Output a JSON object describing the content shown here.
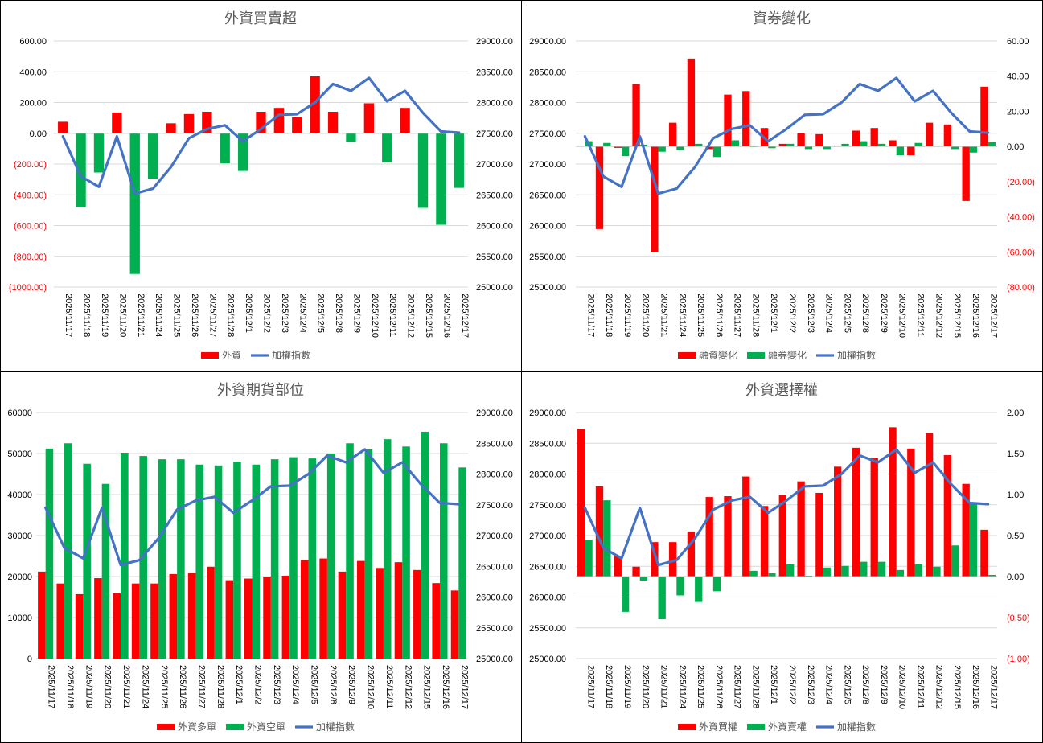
{
  "dates": [
    "2025/11/17",
    "2025/11/18",
    "2025/11/19",
    "2025/11/20",
    "2025/11/21",
    "2025/11/24",
    "2025/11/25",
    "2025/11/26",
    "2025/11/27",
    "2025/11/28",
    "2025/12/1",
    "2025/12/2",
    "2025/12/3",
    "2025/12/4",
    "2025/12/5",
    "2025/12/8",
    "2025/12/9",
    "2025/12/10",
    "2025/12/11",
    "2025/12/12",
    "2025/12/15",
    "2025/12/16",
    "2025/12/17"
  ],
  "colors": {
    "red": "#ff0000",
    "green": "#00b050",
    "line": "#4472c4",
    "grid": "#d9d9d9",
    "negative": "#ff0000",
    "text": "#595959"
  },
  "chart_data": [
    {
      "id": "foreign-net",
      "type": "bar+line",
      "title": "外資買賣超",
      "bar_mode": "signed_color",
      "left_axis": {
        "min": -1000,
        "max": 600,
        "step": 200,
        "format": "2dp-paren"
      },
      "right_axis": {
        "min": 25000,
        "max": 29000,
        "step": 500,
        "format": "2dp"
      },
      "series": [
        {
          "name": "外資",
          "kind": "bar",
          "axis": "left",
          "values": [
            75,
            -480,
            -255,
            135,
            -915,
            -295,
            65,
            125,
            140,
            -195,
            -245,
            140,
            165,
            105,
            370,
            140,
            -55,
            195,
            -190,
            165,
            -485,
            -595,
            -355
          ]
        },
        {
          "name": "加權指數",
          "kind": "line",
          "axis": "right",
          "values": [
            27450,
            26800,
            26630,
            27450,
            26520,
            26600,
            26950,
            27420,
            27570,
            27630,
            27370,
            27570,
            27800,
            27810,
            28000,
            28300,
            28190,
            28400,
            28020,
            28190,
            27830,
            27530,
            27510
          ]
        }
      ],
      "legend": [
        "外資",
        "加權指數"
      ]
    },
    {
      "id": "margin-change",
      "type": "bar+line",
      "title": "資券變化",
      "bar_mode": "fixed",
      "left_axis": {
        "min": 25000,
        "max": 29000,
        "step": 500,
        "format": "2dp"
      },
      "right_axis": {
        "min": -80,
        "max": 60,
        "step": 20,
        "format": "2dp-paren"
      },
      "series": [
        {
          "name": "融資變化",
          "kind": "bar",
          "axis": "right",
          "color": "red",
          "values": [
            0.3,
            -47,
            -0.8,
            35.5,
            -60,
            13.5,
            50,
            -1.5,
            29.5,
            31.5,
            10.5,
            1.5,
            7.5,
            7,
            0.5,
            9,
            10.5,
            3.5,
            -5,
            13.5,
            12.5,
            -31,
            34
          ]
        },
        {
          "name": "融券變化",
          "kind": "bar",
          "axis": "right",
          "color": "green",
          "values": [
            3,
            2,
            -5.5,
            1,
            -3,
            -2,
            1.5,
            -6,
            3.5,
            -0.3,
            -1,
            1.5,
            -1.5,
            -1.5,
            1.5,
            3,
            1.5,
            -5,
            2,
            0.3,
            -1.5,
            -3.5,
            2.5
          ]
        },
        {
          "name": "加權指數",
          "kind": "line",
          "axis": "left",
          "values": [
            27450,
            26800,
            26630,
            27450,
            26520,
            26600,
            26950,
            27420,
            27570,
            27630,
            27370,
            27570,
            27800,
            27810,
            28000,
            28300,
            28190,
            28400,
            28020,
            28190,
            27830,
            27530,
            27510
          ]
        }
      ],
      "legend": [
        "融資變化",
        "融券變化",
        "加權指數"
      ]
    },
    {
      "id": "futures-position",
      "type": "bar+line",
      "title": "外資期貨部位",
      "bar_mode": "fixed",
      "left_axis": {
        "min": 0,
        "max": 60000,
        "step": 10000,
        "format": "int"
      },
      "right_axis": {
        "min": 25000,
        "max": 29000,
        "step": 500,
        "format": "2dp"
      },
      "series": [
        {
          "name": "外資多單",
          "kind": "bar",
          "axis": "left",
          "color": "red",
          "values": [
            21200,
            18300,
            15700,
            19600,
            15900,
            18300,
            18300,
            20600,
            20900,
            22400,
            19100,
            19500,
            20000,
            20200,
            24000,
            24400,
            21200,
            23800,
            22100,
            23500,
            21600,
            18400,
            16600
          ]
        },
        {
          "name": "外資空單",
          "kind": "bar",
          "axis": "left",
          "color": "green",
          "values": [
            51200,
            52500,
            47500,
            42600,
            50200,
            49400,
            48600,
            48600,
            47300,
            47100,
            48000,
            47300,
            48600,
            49100,
            48800,
            50000,
            52500,
            51000,
            53500,
            51700,
            55300,
            52500,
            46600
          ]
        },
        {
          "name": "加權指數",
          "kind": "line",
          "axis": "right",
          "values": [
            27450,
            26800,
            26630,
            27450,
            26520,
            26600,
            26950,
            27420,
            27570,
            27630,
            27370,
            27570,
            27800,
            27810,
            28000,
            28300,
            28190,
            28400,
            28020,
            28190,
            27830,
            27530,
            27510
          ]
        }
      ],
      "legend": [
        "外資多單",
        "外資空單",
        "加權指數"
      ]
    },
    {
      "id": "options",
      "type": "bar+line",
      "title": "外資選擇權",
      "bar_mode": "fixed",
      "left_axis": {
        "min": 25000,
        "max": 29000,
        "step": 500,
        "format": "2dp"
      },
      "right_axis": {
        "min": -1,
        "max": 2,
        "step": 0.5,
        "format": "2dp-paren"
      },
      "series": [
        {
          "name": "外資買權",
          "kind": "bar",
          "axis": "right",
          "color": "red",
          "values": [
            1.8,
            1.1,
            0.25,
            0.12,
            0.42,
            0.42,
            0.55,
            0.97,
            0.98,
            1.22,
            0.86,
            1.0,
            1.16,
            1.02,
            1.34,
            1.57,
            1.45,
            1.82,
            1.56,
            1.75,
            1.48,
            1.13,
            0.57
          ]
        },
        {
          "name": "外資賣權",
          "kind": "bar",
          "axis": "right",
          "color": "green",
          "values": [
            0.45,
            0.93,
            -0.43,
            -0.05,
            -0.52,
            -0.23,
            -0.31,
            -0.18,
            0.0,
            0.07,
            0.04,
            0.15,
            0.01,
            0.11,
            0.13,
            0.18,
            0.18,
            0.08,
            0.15,
            0.12,
            0.38,
            0.9,
            0.02
          ]
        },
        {
          "name": "加權指數",
          "kind": "line",
          "axis": "left",
          "values": [
            27450,
            26800,
            26630,
            27450,
            26520,
            26600,
            26950,
            27420,
            27570,
            27630,
            27370,
            27570,
            27800,
            27810,
            28000,
            28300,
            28190,
            28400,
            28020,
            28190,
            27830,
            27530,
            27510
          ]
        }
      ],
      "legend": [
        "外資買權",
        "外資賣權",
        "加權指數"
      ]
    }
  ]
}
